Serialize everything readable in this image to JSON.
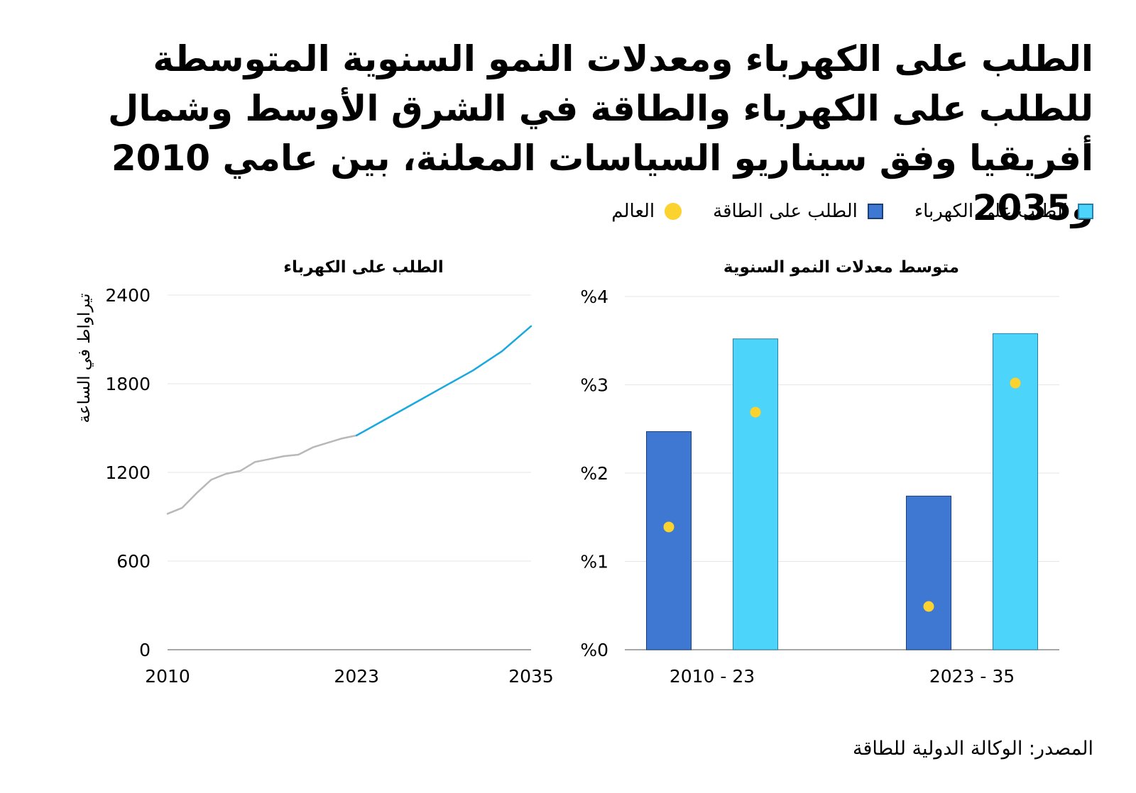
{
  "title": "الطلب على الكهرباء ومعدلات النمو السنوية المتوسطة للطلب على الكهرباء والطاقة في الشرق الأوسط وشمال أفريقيا وفق سيناريو السياسات المعلنة، بين عامي 2010 و2035",
  "legend": {
    "electricity": "الطلب على الكهرباء",
    "energy": "الطلب على الطاقة",
    "world": "العالم"
  },
  "source": "المصدر: الوكالة الدولية للطاقة",
  "colors": {
    "electricity": "#4cd4fa",
    "energy": "#3e78d2",
    "world": "#fbd22e",
    "historical_line": "#b8b8b8",
    "projection_line": "#1aa9df"
  },
  "chart_data": [
    {
      "type": "line",
      "title": "الطلب على الكهرباء",
      "ylabel": "تيراواط في الساعة",
      "xlabel": "",
      "ylim": [
        0,
        2400
      ],
      "yticks": [
        "0",
        "600",
        "1200",
        "1800",
        "2400"
      ],
      "xticks": [
        "2010",
        "2023",
        "2035"
      ],
      "series": [
        {
          "name": "historical",
          "x": [
            2010,
            2011,
            2012,
            2013,
            2014,
            2015,
            2016,
            2017,
            2018,
            2019,
            2020,
            2021,
            2022,
            2023
          ],
          "values": [
            920,
            960,
            1060,
            1150,
            1190,
            1210,
            1270,
            1290,
            1310,
            1320,
            1370,
            1400,
            1430,
            1450
          ]
        },
        {
          "name": "projection",
          "x": [
            2023,
            2025,
            2027,
            2029,
            2031,
            2033,
            2035
          ],
          "values": [
            1450,
            1560,
            1670,
            1780,
            1890,
            2020,
            2190
          ]
        }
      ]
    },
    {
      "type": "bar",
      "title": "متوسط معدلات النمو السنوية",
      "ylim": [
        0,
        4
      ],
      "yticks": [
        "%0",
        "%1",
        "%2",
        "%3",
        "%4"
      ],
      "categories": [
        "2010 - 23",
        "2023 - 35"
      ],
      "series": [
        {
          "name": "الطلب على الطاقة",
          "values": [
            2.47,
            1.74
          ]
        },
        {
          "name": "الطلب على الكهرباء",
          "values": [
            3.52,
            3.58
          ]
        }
      ],
      "world": {
        "name": "العالم",
        "energy": [
          1.39,
          0.49
        ],
        "electricity": [
          2.69,
          3.02
        ]
      }
    }
  ]
}
